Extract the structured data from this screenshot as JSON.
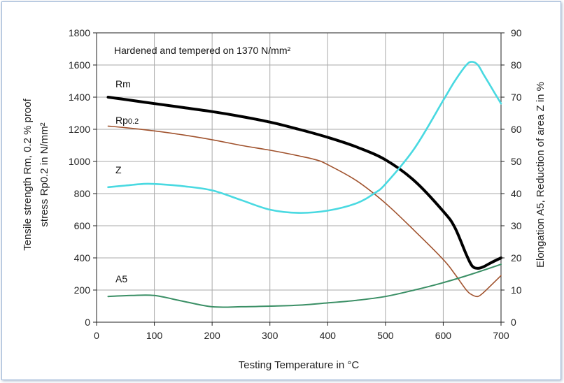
{
  "chart_data": {
    "type": "line",
    "annotation": "Hardened and tempered on 1370 N/mm²",
    "xlabel": "Testing Temperature in °C",
    "ylabel_left_line1": "Tensile strength Rm, 0.2 % proof",
    "ylabel_left_line2": "stress Rp0.2 in N/mm²",
    "ylabel_right": "Elongation A5, Reduction of area Z in %",
    "xlim": [
      0,
      700
    ],
    "ylim_left": [
      0,
      1800
    ],
    "ylim_right": [
      0,
      90
    ],
    "x_ticks": [
      "0",
      "100",
      "200",
      "300",
      "400",
      "500",
      "600",
      "700"
    ],
    "y_left_ticks": [
      "0",
      "200",
      "400",
      "600",
      "800",
      "1000",
      "1200",
      "1400",
      "1600",
      "1800"
    ],
    "y_right_ticks": [
      "0",
      "10",
      "20",
      "30",
      "40",
      "50",
      "60",
      "70",
      "80",
      "90"
    ],
    "grid": true,
    "series": [
      {
        "name": "Rm",
        "axis": "left",
        "color": "#000000",
        "x": [
          20,
          50,
          100,
          150,
          200,
          250,
          300,
          350,
          400,
          450,
          500,
          550,
          600,
          620,
          640,
          650,
          660,
          670,
          680,
          700
        ],
        "y": [
          1400,
          1385,
          1360,
          1335,
          1310,
          1280,
          1245,
          1200,
          1150,
          1090,
          1010,
          880,
          690,
          590,
          420,
          350,
          335,
          345,
          365,
          400
        ]
      },
      {
        "name": "Rp0.2",
        "axis": "left",
        "color": "#a0522d",
        "x": [
          20,
          50,
          100,
          150,
          200,
          250,
          300,
          350,
          380,
          400,
          450,
          500,
          550,
          600,
          620,
          640,
          650,
          660,
          670,
          680,
          700
        ],
        "y": [
          1220,
          1210,
          1190,
          1165,
          1135,
          1100,
          1070,
          1035,
          1010,
          980,
          880,
          740,
          570,
          390,
          300,
          200,
          170,
          160,
          185,
          220,
          290
        ]
      },
      {
        "name": "Z",
        "axis": "right",
        "color": "#49d9e1",
        "x": [
          20,
          50,
          80,
          100,
          150,
          200,
          250,
          300,
          350,
          400,
          450,
          480,
          500,
          550,
          600,
          620,
          640,
          650,
          660,
          670,
          680,
          690,
          700
        ],
        "y": [
          42,
          42.5,
          43,
          43,
          42.3,
          41,
          38,
          35,
          34,
          34.7,
          37,
          40,
          43,
          54,
          69,
          75,
          80,
          81,
          80,
          77,
          74,
          71,
          68
        ]
      },
      {
        "name": "A5",
        "axis": "right",
        "color": "#3a8f65",
        "x": [
          20,
          60,
          100,
          150,
          200,
          250,
          300,
          350,
          400,
          450,
          500,
          550,
          600,
          650,
          700
        ],
        "y": [
          8,
          8.3,
          8.3,
          6.5,
          4.8,
          4.8,
          5,
          5.3,
          6,
          6.8,
          8,
          10,
          12.3,
          15,
          18
        ]
      }
    ],
    "labels": {
      "Rm": "Rm",
      "Rp_main": "Rp",
      "Rp_sub": "0.2",
      "Z": "Z",
      "A5": "A5"
    }
  }
}
